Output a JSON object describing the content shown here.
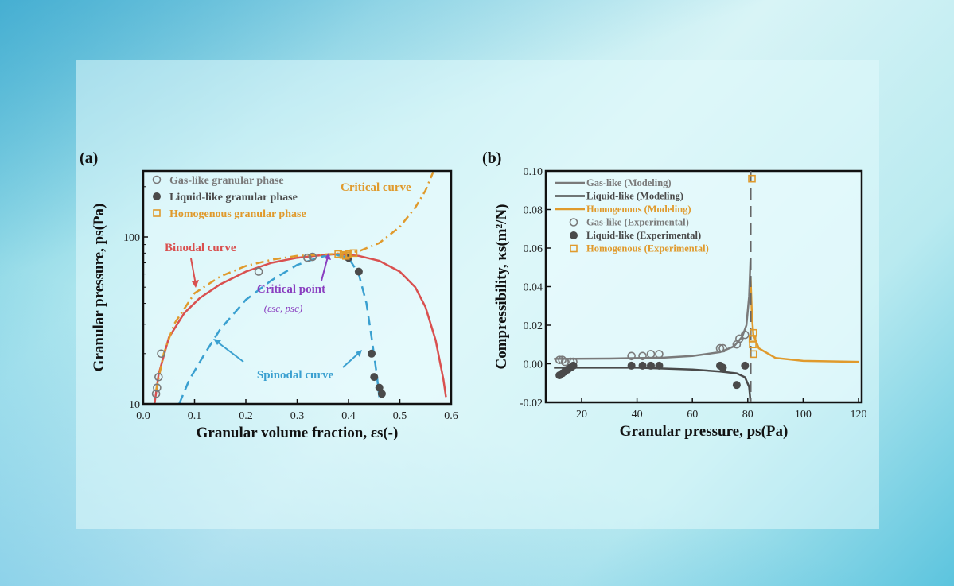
{
  "colors": {
    "gas": "#7a7a7a",
    "liquid": "#4a4a4a",
    "homog": "#e09a2c",
    "binodal": "#d9504f",
    "spinodal": "#3aa0d0",
    "critical_point": "#8a3fc0"
  },
  "chart_data": [
    {
      "panel_label": "(a)",
      "type": "line",
      "xlabel": "Granular volume fraction, εs(-)",
      "ylabel": "Granular pressure, ps(Pa)",
      "xlim": [
        0,
        0.6
      ],
      "ylim": [
        10,
        250
      ],
      "yscale": "log",
      "xticks": [
        "0.0",
        "0.1",
        "0.2",
        "0.3",
        "0.4",
        "0.5",
        "0.6"
      ],
      "yticks": [
        "10",
        "100"
      ],
      "legend": {
        "placement": "top-left",
        "entries": [
          "Gas-like granular phase",
          "Liquid-like granular phase",
          "Homogenous granular phase"
        ]
      },
      "annotations": {
        "binodal": "Binodal curve",
        "critical_curve": "Critical curve",
        "critical_point": "Critical point",
        "critical_point_coords": "(εsc, psc)",
        "spinodal": "Spinodal curve"
      },
      "series": [
        {
          "name": "Binodal curve",
          "style": "solid",
          "points": [
            [
              0.022,
              10
            ],
            [
              0.03,
              15
            ],
            [
              0.05,
              25
            ],
            [
              0.08,
              35
            ],
            [
              0.11,
              43
            ],
            [
              0.15,
              52
            ],
            [
              0.2,
              62
            ],
            [
              0.25,
              70
            ],
            [
              0.3,
              75
            ],
            [
              0.35,
              78
            ],
            [
              0.38,
              79
            ],
            [
              0.42,
              77
            ],
            [
              0.46,
              72
            ],
            [
              0.5,
              62
            ],
            [
              0.53,
              50
            ],
            [
              0.55,
              38
            ],
            [
              0.57,
              24
            ],
            [
              0.585,
              14
            ],
            [
              0.59,
              11
            ]
          ]
        },
        {
          "name": "Spinodal curve",
          "style": "dashed",
          "points": [
            [
              0.07,
              10
            ],
            [
              0.09,
              14
            ],
            [
              0.12,
              20
            ],
            [
              0.15,
              28
            ],
            [
              0.2,
              42
            ],
            [
              0.25,
              55
            ],
            [
              0.3,
              68
            ],
            [
              0.34,
              75
            ],
            [
              0.37,
              79
            ],
            [
              0.4,
              75
            ],
            [
              0.42,
              60
            ],
            [
              0.435,
              40
            ],
            [
              0.445,
              25
            ],
            [
              0.455,
              15
            ],
            [
              0.46,
              11
            ]
          ]
        },
        {
          "name": "Critical curve",
          "style": "dashdot",
          "points": [
            [
              0.025,
              12
            ],
            [
              0.04,
              20
            ],
            [
              0.06,
              30
            ],
            [
              0.1,
              46
            ],
            [
              0.15,
              58
            ],
            [
              0.2,
              67
            ],
            [
              0.25,
              73
            ],
            [
              0.3,
              77
            ],
            [
              0.37,
              79
            ],
            [
              0.42,
              82
            ],
            [
              0.46,
              92
            ],
            [
              0.5,
              115
            ],
            [
              0.53,
              150
            ],
            [
              0.55,
              190
            ],
            [
              0.565,
              245
            ]
          ]
        },
        {
          "name": "Gas-like granular phase",
          "marker": "open-circle",
          "points": [
            [
              0.025,
              11.5
            ],
            [
              0.027,
              12.5
            ],
            [
              0.03,
              14.5
            ],
            [
              0.035,
              20
            ],
            [
              0.225,
              62
            ],
            [
              0.32,
              75
            ],
            [
              0.33,
              76
            ]
          ]
        },
        {
          "name": "Liquid-like granular phase",
          "marker": "filled-circle",
          "points": [
            [
              0.4,
              75
            ],
            [
              0.42,
              62
            ],
            [
              0.445,
              20
            ],
            [
              0.45,
              14.5
            ],
            [
              0.46,
              12.5
            ],
            [
              0.465,
              11.5
            ]
          ]
        },
        {
          "name": "Homogenous granular phase",
          "marker": "open-square",
          "points": [
            [
              0.38,
              79
            ],
            [
              0.39,
              78
            ],
            [
              0.395,
              77
            ],
            [
              0.4,
              79
            ],
            [
              0.41,
              80
            ]
          ]
        }
      ]
    },
    {
      "panel_label": "(b)",
      "type": "line",
      "xlabel": "Granular pressure, ps(Pa)",
      "ylabel": "Compressibility, κs(m²/N)",
      "xlim": [
        7,
        120
      ],
      "ylim": [
        -0.02,
        0.1
      ],
      "xticks": [
        "20",
        "40",
        "60",
        "80",
        "100",
        "120"
      ],
      "yticks": [
        "-0.02",
        "0.00",
        "0.02",
        "0.04",
        "0.06",
        "0.08",
        "0.10"
      ],
      "legend": {
        "placement": "top-left",
        "entries": [
          "Gas-like (Modeling)",
          "Liquid-like (Modeling)",
          "Homogenous (Modeling)",
          "Gas-like (Experimental)",
          "Liquid-like (Experimental)",
          "Homogenous (Experimental)"
        ]
      },
      "critical_line_x": 81,
      "series": [
        {
          "name": "Gas-like (Modeling)",
          "style": "solid",
          "points": [
            [
              10,
              0.0025
            ],
            [
              30,
              0.0027
            ],
            [
              50,
              0.0032
            ],
            [
              60,
              0.004
            ],
            [
              70,
              0.006
            ],
            [
              75,
              0.009
            ],
            [
              78,
              0.014
            ],
            [
              79.5,
              0.02
            ],
            [
              80.5,
              0.035
            ],
            [
              81,
              0.055
            ]
          ]
        },
        {
          "name": "Liquid-like (Modeling)",
          "style": "solid",
          "points": [
            [
              10,
              -0.002
            ],
            [
              40,
              -0.002
            ],
            [
              60,
              -0.003
            ],
            [
              70,
              -0.004
            ],
            [
              76,
              -0.005
            ],
            [
              79,
              -0.007
            ],
            [
              80.5,
              -0.012
            ],
            [
              81,
              -0.02
            ]
          ]
        },
        {
          "name": "Homogenous (Modeling)",
          "style": "solid",
          "points": [
            [
              81,
              0.045
            ],
            [
              81.5,
              0.025
            ],
            [
              82,
              0.015
            ],
            [
              84,
              0.008
            ],
            [
              90,
              0.003
            ],
            [
              100,
              0.0015
            ],
            [
              120,
              0.001
            ]
          ]
        },
        {
          "name": "Gas-like (Experimental)",
          "marker": "open-circle",
          "points": [
            [
              12,
              0.002
            ],
            [
              13,
              0.002
            ],
            [
              14,
              0.001
            ],
            [
              16,
              0.001
            ],
            [
              17,
              0.001
            ],
            [
              38,
              0.004
            ],
            [
              42,
              0.004
            ],
            [
              45,
              0.005
            ],
            [
              48,
              0.005
            ],
            [
              70,
              0.008
            ],
            [
              71,
              0.008
            ],
            [
              76,
              0.01
            ],
            [
              77,
              0.013
            ],
            [
              79,
              0.015
            ]
          ]
        },
        {
          "name": "Liquid-like (Experimental)",
          "marker": "filled-circle",
          "points": [
            [
              12,
              -0.006
            ],
            [
              13,
              -0.005
            ],
            [
              14,
              -0.004
            ],
            [
              15,
              -0.003
            ],
            [
              16,
              -0.002
            ],
            [
              17,
              -0.001
            ],
            [
              38,
              -0.001
            ],
            [
              42,
              -0.001
            ],
            [
              45,
              -0.001
            ],
            [
              48,
              -0.001
            ],
            [
              70,
              -0.001
            ],
            [
              71,
              -0.002
            ],
            [
              76,
              -0.011
            ],
            [
              79,
              -0.001
            ]
          ]
        },
        {
          "name": "Homogenous (Experimental)",
          "marker": "open-square",
          "points": [
            [
              81.5,
              0.096
            ],
            [
              82,
              0.016
            ],
            [
              81.7,
              0.013
            ],
            [
              81.8,
              0.01
            ],
            [
              82,
              0.005
            ]
          ]
        }
      ]
    }
  ]
}
